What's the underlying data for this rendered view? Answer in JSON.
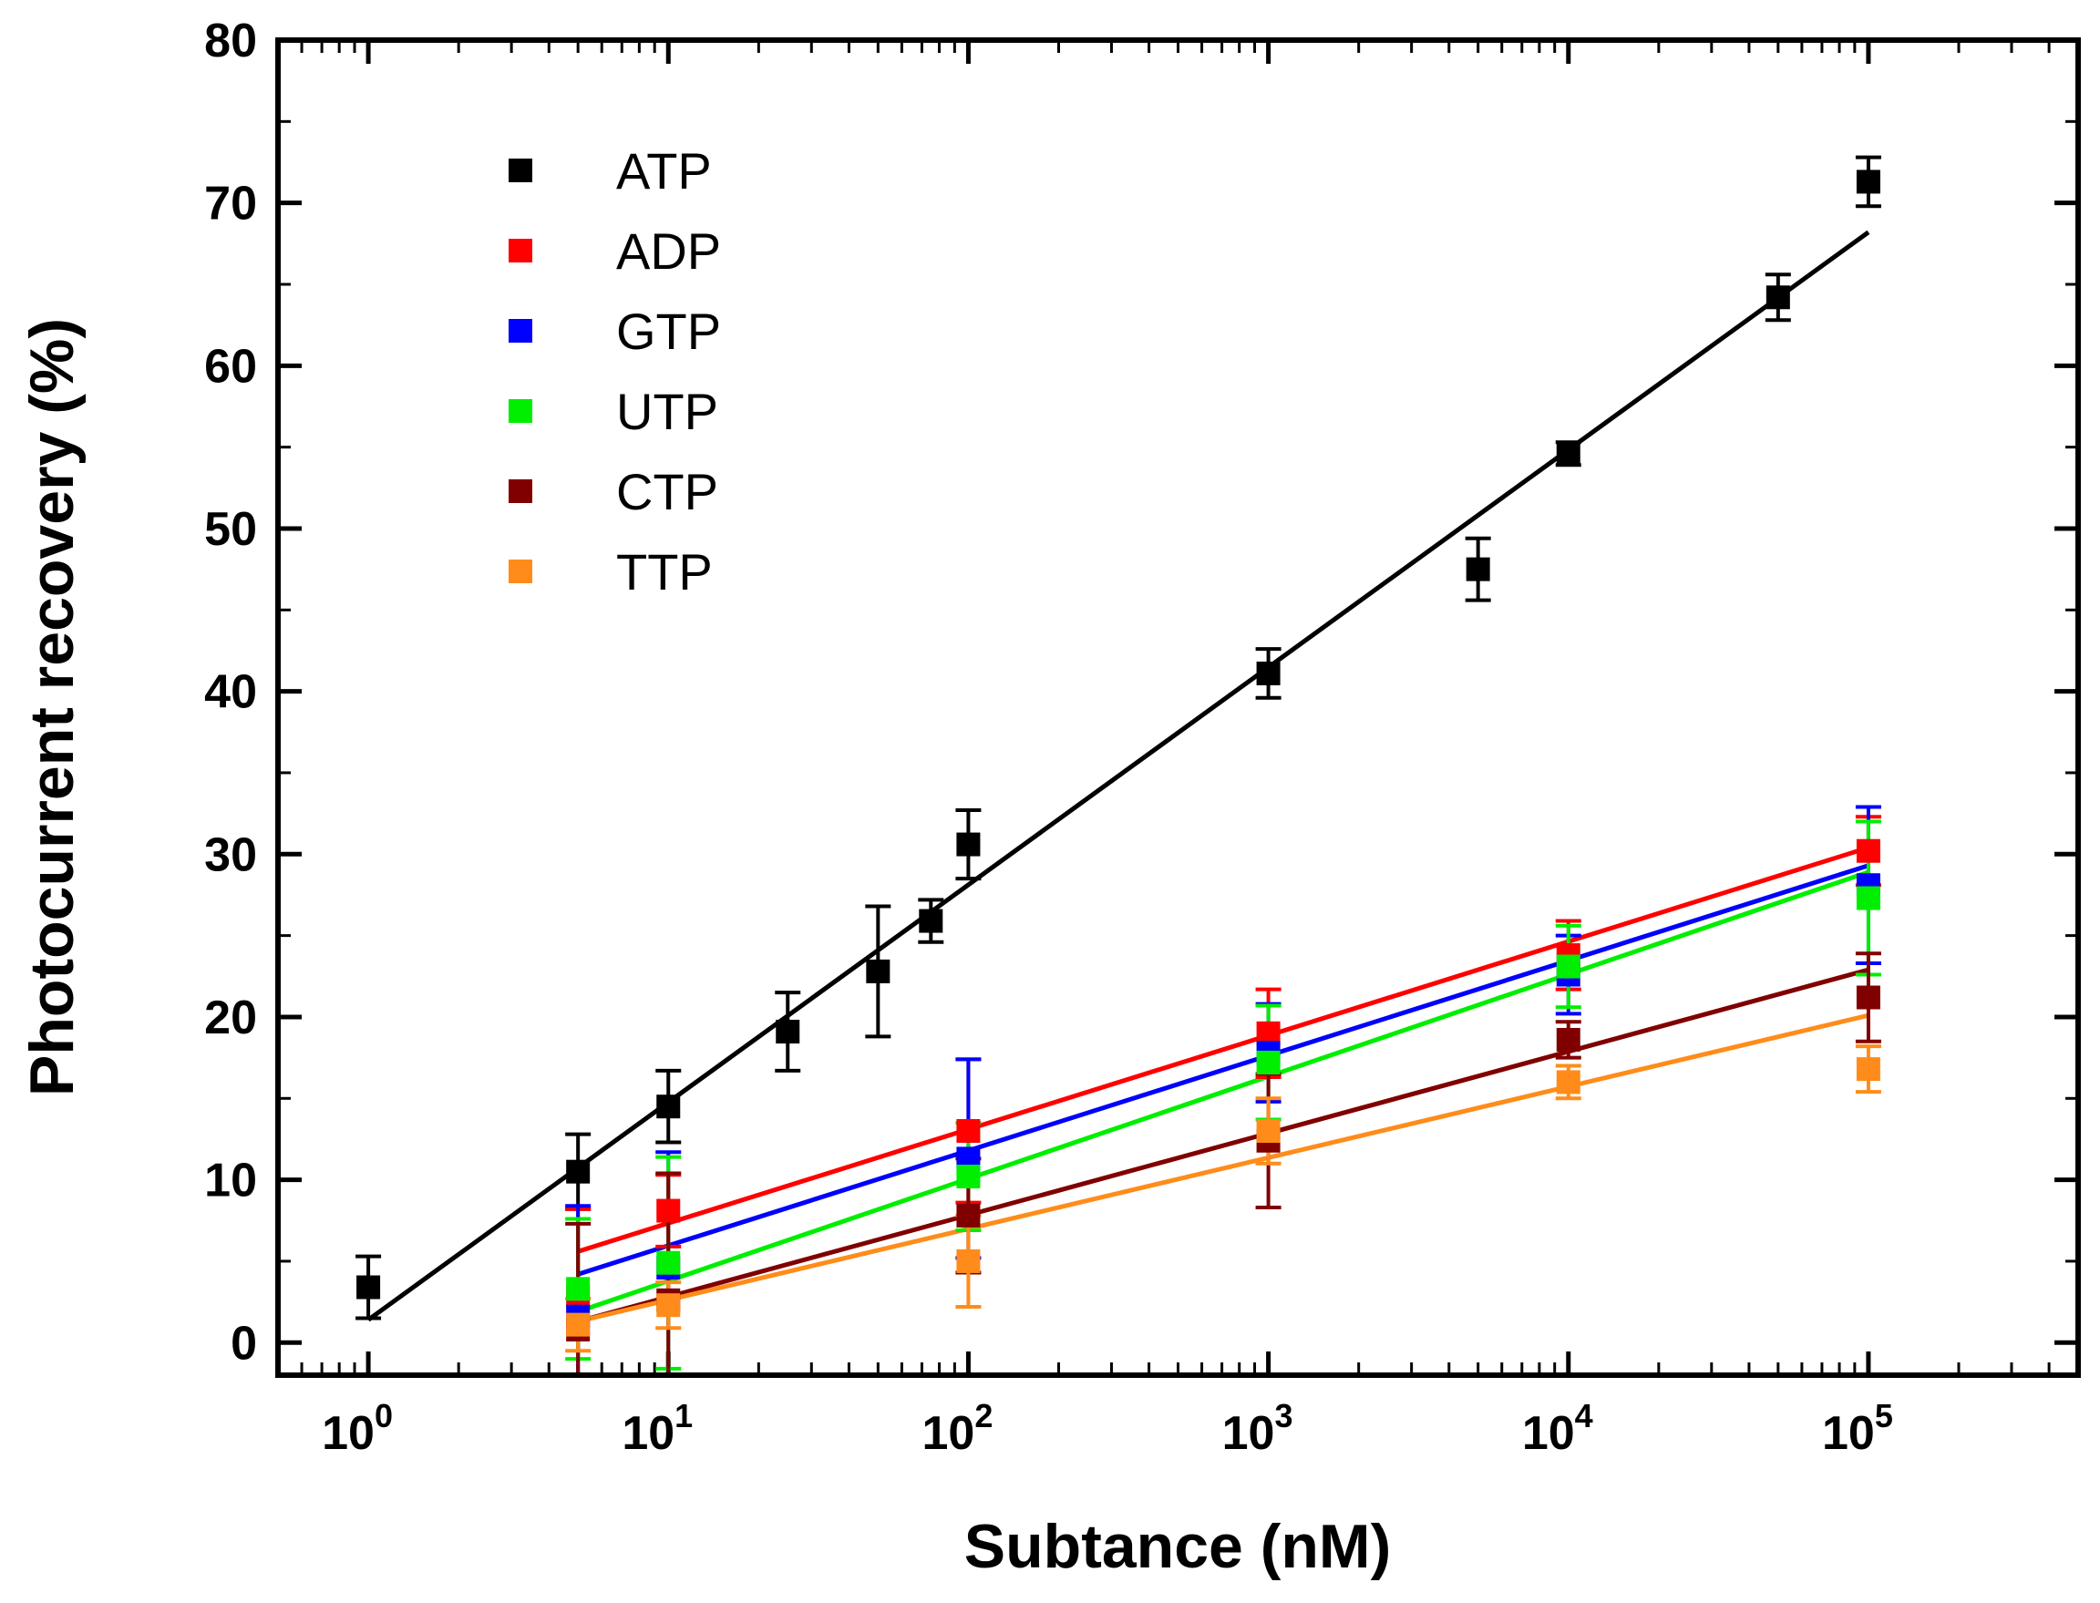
{
  "chart_data": {
    "type": "scatter",
    "title": "",
    "xlabel": "Subtance (nM)",
    "ylabel": "Photocurrent recovery (%)",
    "xscale": "log",
    "xlim": [
      0.5,
      500000
    ],
    "ylim": [
      -2,
      80
    ],
    "x_ticks": [
      {
        "base": "10",
        "exp": "0",
        "value": 1
      },
      {
        "base": "10",
        "exp": "1",
        "value": 10
      },
      {
        "base": "10",
        "exp": "2",
        "value": 100
      },
      {
        "base": "10",
        "exp": "3",
        "value": 1000
      },
      {
        "base": "10",
        "exp": "4",
        "value": 10000
      },
      {
        "base": "10",
        "exp": "5",
        "value": 100000
      }
    ],
    "y_ticks": [
      "0",
      "10",
      "20",
      "30",
      "40",
      "50",
      "60",
      "70",
      "80"
    ],
    "legend_position": "top-left",
    "series": [
      {
        "name": "ATP",
        "color": "#000000",
        "points": [
          {
            "x": 1,
            "y": 3.4,
            "err": 1.9
          },
          {
            "x": 5,
            "y": 10.5,
            "err": 2.3
          },
          {
            "x": 10,
            "y": 14.5,
            "err": 2.2
          },
          {
            "x": 25,
            "y": 19.1,
            "err": 2.4
          },
          {
            "x": 50,
            "y": 22.8,
            "err": 4.0
          },
          {
            "x": 75,
            "y": 25.9,
            "err": 1.3
          },
          {
            "x": 100,
            "y": 30.6,
            "err": 2.1
          },
          {
            "x": 1000,
            "y": 41.1,
            "err": 1.5
          },
          {
            "x": 5000,
            "y": 47.5,
            "err": 1.9
          },
          {
            "x": 10000,
            "y": 54.6,
            "err": 0.7
          },
          {
            "x": 50000,
            "y": 64.2,
            "err": 1.4
          },
          {
            "x": 100000,
            "y": 71.3,
            "err": 1.5
          }
        ],
        "fit": {
          "x": [
            1,
            100000
          ],
          "y": [
            1.4,
            68.2
          ]
        }
      },
      {
        "name": "ADP",
        "color": "#ff0000",
        "points": [
          {
            "x": 5,
            "y": 2.8,
            "err": 5.4
          },
          {
            "x": 10,
            "y": 8.1,
            "err": 2.2
          },
          {
            "x": 100,
            "y": 13.0,
            "err": 4.4
          },
          {
            "x": 1000,
            "y": 19.0,
            "err": 2.7
          },
          {
            "x": 10000,
            "y": 23.8,
            "err": 2.1
          },
          {
            "x": 100000,
            "y": 30.2,
            "err": 2.1
          }
        ],
        "fit": {
          "x": [
            5,
            100000
          ],
          "y": [
            5.6,
            30.4
          ]
        }
      },
      {
        "name": "GTP",
        "color": "#0000ff",
        "points": [
          {
            "x": 5,
            "y": 1.6,
            "err": 6.8
          },
          {
            "x": 10,
            "y": 4.6,
            "err": 7.1
          },
          {
            "x": 100,
            "y": 11.3,
            "err": 6.1
          },
          {
            "x": 1000,
            "y": 17.8,
            "err": 3.0
          },
          {
            "x": 10000,
            "y": 22.6,
            "err": 2.4
          },
          {
            "x": 100000,
            "y": 28.1,
            "err": 4.8
          }
        ],
        "fit": {
          "x": [
            5,
            100000
          ],
          "y": [
            4.2,
            29.3
          ]
        }
      },
      {
        "name": "UTP",
        "color": "#00ee00",
        "points": [
          {
            "x": 5,
            "y": 3.3,
            "err": 4.3
          },
          {
            "x": 10,
            "y": 4.9,
            "err": 6.5
          },
          {
            "x": 100,
            "y": 10.2,
            "err": 3.3
          },
          {
            "x": 1000,
            "y": 17.2,
            "err": 3.5
          },
          {
            "x": 10000,
            "y": 23.1,
            "err": 2.5
          },
          {
            "x": 100000,
            "y": 27.3,
            "err": 4.7
          }
        ],
        "fit": {
          "x": [
            5,
            100000
          ],
          "y": [
            1.9,
            28.9
          ]
        }
      },
      {
        "name": "CTP",
        "color": "#800000",
        "points": [
          {
            "x": 5,
            "y": 0.8,
            "err": 6.5
          },
          {
            "x": 10,
            "y": 2.6,
            "err": 7.8
          },
          {
            "x": 100,
            "y": 7.8,
            "err": 3.5
          },
          {
            "x": 1000,
            "y": 12.4,
            "err": 4.1
          },
          {
            "x": 10000,
            "y": 18.6,
            "err": 1.1
          },
          {
            "x": 100000,
            "y": 21.2,
            "err": 2.7
          }
        ],
        "fit": {
          "x": [
            5,
            100000
          ],
          "y": [
            1.3,
            22.9
          ]
        }
      },
      {
        "name": "TTP",
        "color": "#ff8c1a",
        "points": [
          {
            "x": 5,
            "y": 1.1,
            "err": 1.6
          },
          {
            "x": 10,
            "y": 2.3,
            "err": 1.4
          },
          {
            "x": 100,
            "y": 5.0,
            "err": 2.8
          },
          {
            "x": 1000,
            "y": 13.0,
            "err": 2.0
          },
          {
            "x": 10000,
            "y": 16.0,
            "err": 1.0
          },
          {
            "x": 100000,
            "y": 16.8,
            "err": 1.4
          }
        ],
        "fit": {
          "x": [
            5,
            100000
          ],
          "y": [
            1.3,
            20.1
          ]
        }
      }
    ]
  }
}
